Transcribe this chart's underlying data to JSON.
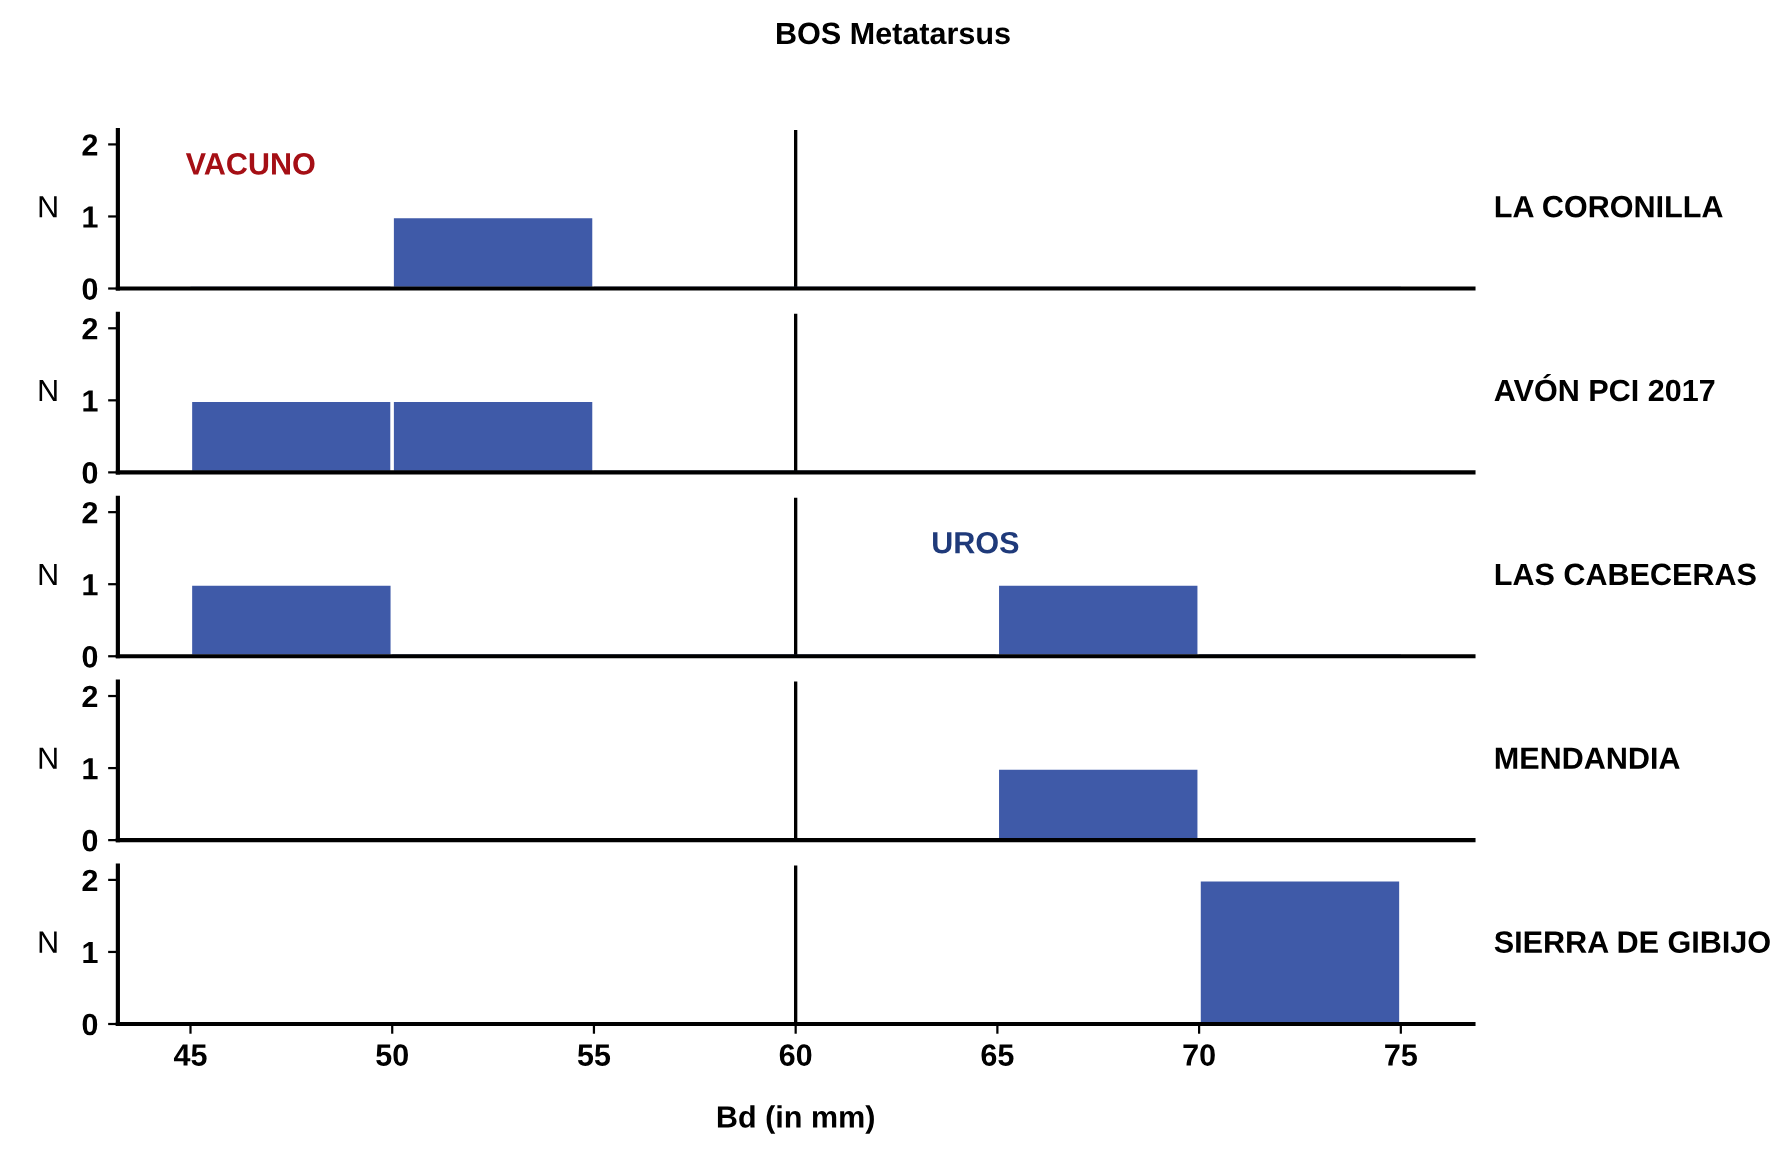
{
  "chart_data": [
    {
      "type": "histogram",
      "title": "BOS Metatarsus",
      "ylabel": "N",
      "y2label": "LA CORONILLA",
      "annotations": [
        "VACUNO"
      ],
      "bins": [
        45,
        50,
        55,
        60,
        65,
        70,
        75
      ],
      "values": [
        0,
        1,
        0,
        0,
        0,
        0
      ],
      "color": "#3f5aa8",
      "xlim": [
        43.2,
        76.8
      ],
      "ylim": [
        0,
        2.2
      ],
      "yticks": [
        0,
        1,
        2
      ],
      "ref_lines": [
        {
          "axis": "x",
          "value": 60,
          "color": "#000000"
        }
      ],
      "tick_labels": "y",
      "grid": false,
      "legend": false
    },
    {
      "type": "histogram",
      "ylabel": "N",
      "y2label": "AVÓN PCI 2017",
      "bins": [
        45,
        50,
        55,
        60,
        65,
        70,
        75
      ],
      "values": [
        1,
        1,
        0,
        0,
        0,
        0
      ],
      "color": "#3f5aa8",
      "xlim": [
        43.2,
        76.8
      ],
      "ylim": [
        0,
        2.2
      ],
      "yticks": [
        0,
        1,
        2
      ],
      "ref_lines": [
        {
          "axis": "x",
          "value": 60,
          "color": "#000000"
        }
      ],
      "tick_labels": "y",
      "grid": false,
      "legend": false
    },
    {
      "type": "histogram",
      "ylabel": "N",
      "y2label": "LAS CABECERAS",
      "annotations": [
        "UROS"
      ],
      "bins": [
        45,
        50,
        55,
        60,
        65,
        70,
        75
      ],
      "values": [
        1,
        0,
        0,
        0,
        1,
        0
      ],
      "color": "#3f5aa8",
      "xlim": [
        43.2,
        76.8
      ],
      "ylim": [
        0,
        2.2
      ],
      "yticks": [
        0,
        1,
        2
      ],
      "ref_lines": [
        {
          "axis": "x",
          "value": 60,
          "color": "#000000"
        }
      ],
      "tick_labels": "y",
      "grid": false,
      "legend": false
    },
    {
      "type": "histogram",
      "ylabel": "N",
      "y2label": "MENDANDIA",
      "bins": [
        45,
        50,
        55,
        60,
        65,
        70,
        75
      ],
      "values": [
        0,
        0,
        0,
        0,
        1,
        0
      ],
      "color": "#3f5aa8",
      "xlim": [
        43.2,
        76.8
      ],
      "ylim": [
        0,
        2.2
      ],
      "yticks": [
        0,
        1,
        2
      ],
      "ref_lines": [
        {
          "axis": "x",
          "value": 60,
          "color": "#000000"
        }
      ],
      "tick_labels": "y",
      "grid": false,
      "legend": false
    },
    {
      "type": "histogram",
      "ylabel": "N",
      "y2label": "SIERRA DE GIBIJO",
      "xlabel": "Bd (in mm)",
      "bins": [
        45,
        50,
        55,
        60,
        65,
        70,
        75
      ],
      "values": [
        0,
        0,
        0,
        0,
        0,
        2
      ],
      "color": "#3f5aa8",
      "xlim": [
        43.2,
        76.8
      ],
      "xticks": [
        45,
        50,
        55,
        60,
        65,
        70,
        75
      ],
      "ylim": [
        0,
        2.2
      ],
      "yticks": [
        0,
        1,
        2
      ],
      "ref_lines": [
        {
          "axis": "x",
          "value": 60,
          "color": "#000000"
        }
      ],
      "grid": false,
      "legend": false
    }
  ]
}
